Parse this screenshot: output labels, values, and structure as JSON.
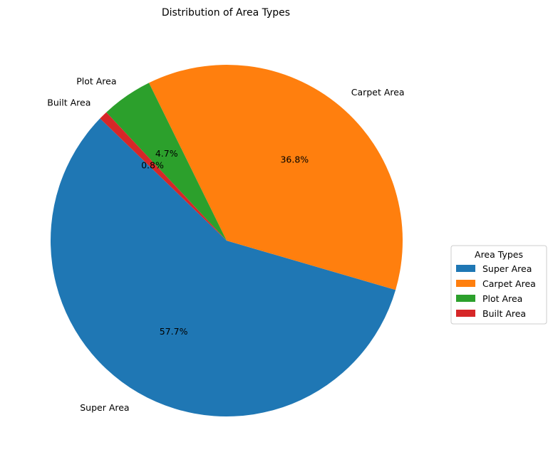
{
  "chart_data": {
    "type": "pie",
    "title": "Distribution of Area Types",
    "categories": [
      "Super Area",
      "Carpet Area",
      "Plot Area",
      "Built Area"
    ],
    "values": [
      57.7,
      36.8,
      4.7,
      0.8
    ],
    "percent_labels": [
      "57.7%",
      "36.8%",
      "4.7%",
      "0.8%"
    ],
    "colors": [
      "#1f77b4",
      "#ff7f0e",
      "#2ca02c",
      "#d62728"
    ],
    "legend": {
      "title": "Area Types",
      "placement": "center-right"
    }
  }
}
